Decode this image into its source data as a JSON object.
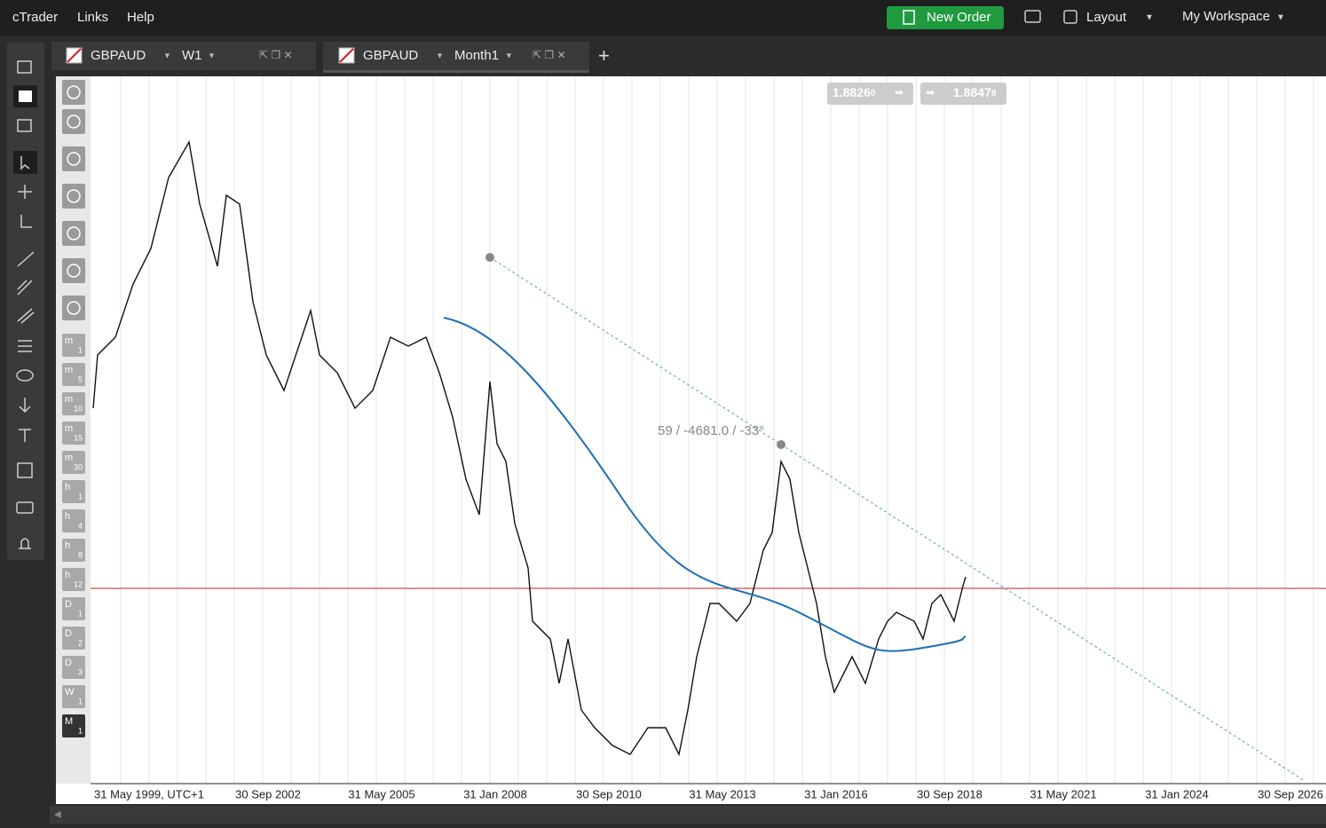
{
  "menu": [
    "cTrader",
    "Links",
    "Help"
  ],
  "toolbar": {
    "new_order": "New Order",
    "layout": "Layout",
    "workspace": "My Workspace"
  },
  "tabs": [
    {
      "symbol": "GBPAUD",
      "period": "W1"
    },
    {
      "symbol": "GBPAUD",
      "period": "Month1"
    }
  ],
  "quotes": {
    "bid": {
      "main": "1.8826",
      "pip": "0"
    },
    "ask": {
      "main": "1.8847",
      "pip": "8"
    }
  },
  "annotation": "59 / -4681.0 / -33°",
  "x_axis": [
    "31 May 1999, UTC+1",
    "30 Sep 2002",
    "31 May 2005",
    "31 Jan 2008",
    "30 Sep 2010",
    "31 May 2013",
    "31 Jan 2016",
    "30 Sep 2018",
    "31 May 2021",
    "31 Jan 2024",
    "30 Sep 2026"
  ],
  "timeframes": [
    {
      "letter": "m",
      "num": "1"
    },
    {
      "letter": "m",
      "num": "5"
    },
    {
      "letter": "m",
      "num": "10"
    },
    {
      "letter": "m",
      "num": "15"
    },
    {
      "letter": "m",
      "num": "30"
    },
    {
      "letter": "h",
      "num": "1"
    },
    {
      "letter": "h",
      "num": "4"
    },
    {
      "letter": "h",
      "num": "8"
    },
    {
      "letter": "h",
      "num": "12"
    },
    {
      "letter": "D",
      "num": "1"
    },
    {
      "letter": "D",
      "num": "2"
    },
    {
      "letter": "D",
      "num": "3"
    },
    {
      "letter": "W",
      "num": "1"
    },
    {
      "letter": "M",
      "num": "1"
    }
  ]
}
